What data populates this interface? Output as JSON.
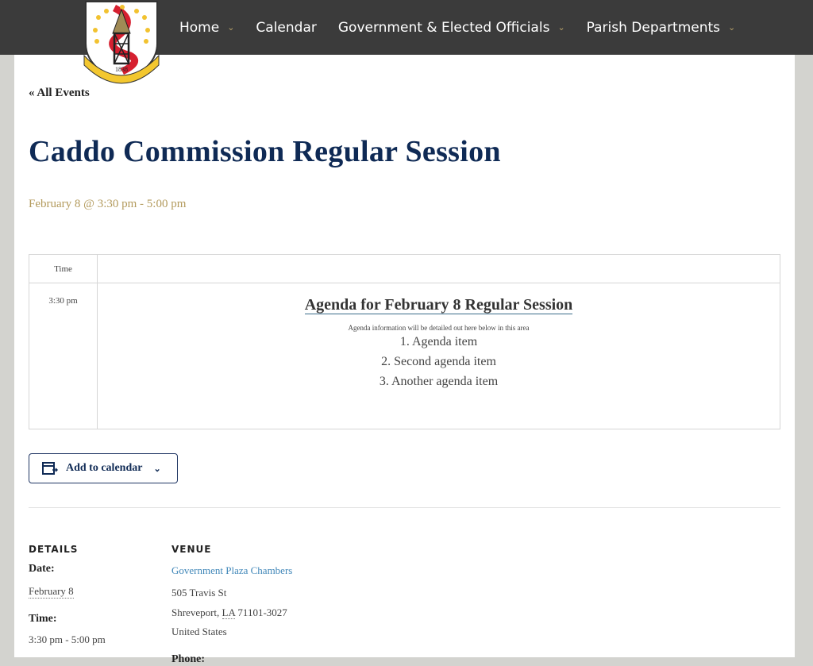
{
  "header": {
    "logo_text": "CADDO PARISH 1838",
    "nav": [
      {
        "label": "Home",
        "dropdown": true
      },
      {
        "label": "Calendar",
        "dropdown": false
      },
      {
        "label": "Government & Elected Officials",
        "dropdown": true
      },
      {
        "label": "Parish Departments",
        "dropdown": true
      }
    ]
  },
  "event": {
    "back_link": "« All Events",
    "title": "Caddo Commission Regular Session",
    "when": "February 8 @ 3:30 pm - 5:00 pm"
  },
  "schedule": {
    "time_header": "Time",
    "row_time": "3:30 pm",
    "agenda_title": "Agenda for February 8 Regular Session",
    "agenda_sub": "Agenda information will be detailed out here below in this area",
    "items": [
      "1. Agenda item",
      "2. Second agenda item",
      "3. Another agenda item"
    ]
  },
  "add_to_calendar": "Add to calendar",
  "details": {
    "heading": "DETAILS",
    "date_label": "Date:",
    "date": "February 8",
    "time_label": "Time:",
    "time": "3:30 pm - 5:00 pm"
  },
  "venue": {
    "heading": "VENUE",
    "name": "Government Plaza Chambers",
    "street": "505 Travis St",
    "city": "Shreveport,",
    "state": "LA",
    "zip": "71101-3027",
    "country": "United States",
    "phone_label": "Phone:"
  },
  "colors": {
    "header_bg": "#3b3b3b",
    "title": "#0f2a55",
    "date": "#b39a5c",
    "link": "#3f86b8",
    "accent": "#b9a36a"
  }
}
